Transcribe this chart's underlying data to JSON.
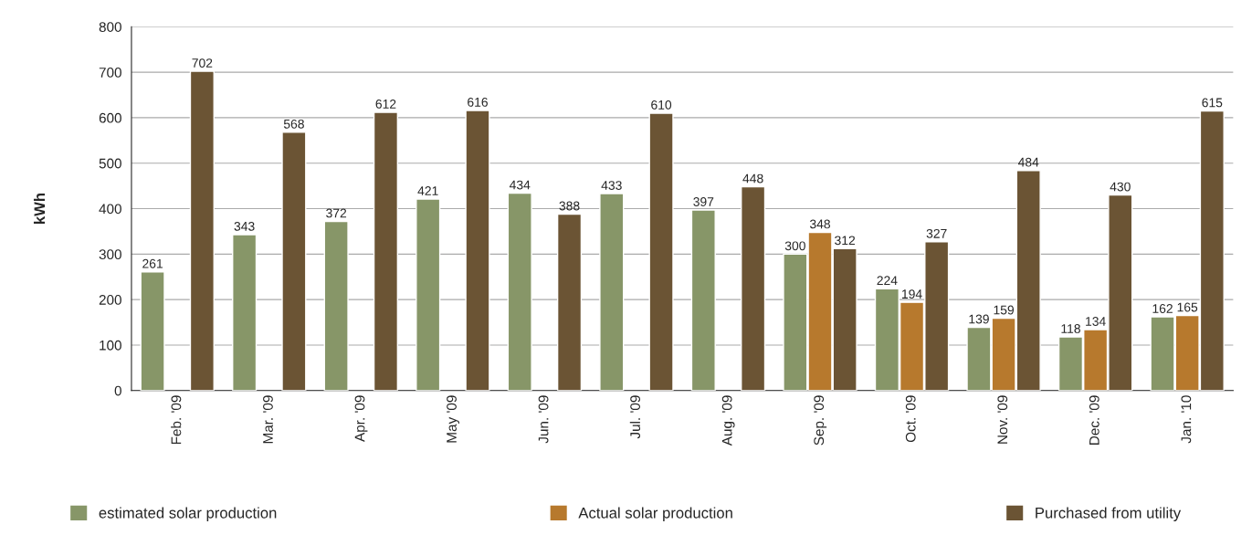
{
  "chart_data": {
    "type": "bar",
    "ylabel": "kWh",
    "categories": [
      "Feb. '09",
      "Mar. '09",
      "Apr. '09",
      "May '09",
      "Jun. '09",
      "Jul. '09",
      "Aug. '09",
      "Sep. '09",
      "Oct. '09",
      "Nov. '09",
      "Dec. '09",
      "Jan. '10"
    ],
    "series": [
      {
        "name": "estimated solar production",
        "color": "#879668",
        "values": [
          261,
          343,
          372,
          421,
          434,
          433,
          397,
          300,
          224,
          139,
          118,
          162
        ]
      },
      {
        "name": "Actual solar production",
        "color": "#b7792d",
        "values": [
          null,
          null,
          null,
          null,
          null,
          null,
          null,
          348,
          194,
          159,
          134,
          165
        ]
      },
      {
        "name": "Purchased from utility",
        "color": "#6b5434",
        "values": [
          702,
          568,
          612,
          616,
          388,
          610,
          448,
          312,
          327,
          484,
          430,
          615
        ]
      }
    ],
    "ylim": [
      0,
      800
    ],
    "yticks": [
      0,
      100,
      200,
      300,
      400,
      500,
      600,
      700,
      800
    ],
    "grid": "y",
    "legend": "bottom",
    "data_labels": true
  }
}
